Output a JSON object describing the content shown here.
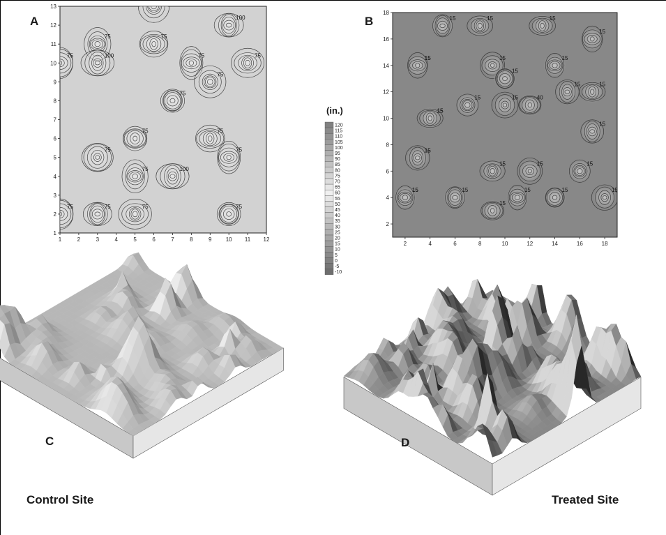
{
  "labels": {
    "panel_a": "A",
    "panel_b": "B",
    "panel_c": "C",
    "panel_d": "D",
    "control_site": "Control Site",
    "treated_site": "Treated Site",
    "legend_unit": "(in.)"
  },
  "colors": {
    "contour_line": "#2b2b2b",
    "control_fill": "#d2d2d2",
    "treated_fill": "#888888",
    "surface_light": "#e4e4e4",
    "surface_dark": "#3a3a3a"
  },
  "chart_data": [
    {
      "type": "heatmap",
      "panel": "A",
      "subtype": "contour",
      "x": {
        "ticks": [
          1,
          2,
          3,
          4,
          5,
          6,
          7,
          8,
          9,
          10,
          11,
          12
        ],
        "range": [
          1,
          12
        ]
      },
      "y": {
        "ticks": [
          1,
          2,
          3,
          4,
          5,
          6,
          7,
          8,
          9,
          10,
          11,
          12,
          13
        ],
        "range": [
          1,
          13
        ]
      },
      "contour_labels": [
        "75",
        "100",
        "75",
        "75",
        "100",
        "75",
        "75",
        "75",
        "75",
        "75",
        "75",
        "75",
        "100",
        "75",
        "75",
        "75",
        "75",
        "75",
        "75",
        "100"
      ],
      "peaks": [
        {
          "x": 3,
          "y": 11,
          "value": 100
        },
        {
          "x": 3,
          "y": 10,
          "value": 100
        },
        {
          "x": 6,
          "y": 11,
          "value": 110
        },
        {
          "x": 8,
          "y": 10,
          "value": 100
        },
        {
          "x": 10,
          "y": 12,
          "value": 100
        },
        {
          "x": 11,
          "y": 10,
          "value": 100
        },
        {
          "x": 1,
          "y": 10,
          "value": 90
        },
        {
          "x": 7,
          "y": 8,
          "value": 90
        },
        {
          "x": 9,
          "y": 9,
          "value": 95
        },
        {
          "x": 3,
          "y": 5,
          "value": 100
        },
        {
          "x": 5,
          "y": 6,
          "value": 100
        },
        {
          "x": 5,
          "y": 4,
          "value": 95
        },
        {
          "x": 7,
          "y": 4,
          "value": 95
        },
        {
          "x": 9,
          "y": 6,
          "value": 100
        },
        {
          "x": 10,
          "y": 5,
          "value": 100
        },
        {
          "x": 3,
          "y": 2,
          "value": 110
        },
        {
          "x": 5,
          "y": 2,
          "value": 110
        },
        {
          "x": 1,
          "y": 2,
          "value": 100
        },
        {
          "x": 10,
          "y": 2,
          "value": 100
        },
        {
          "x": 6,
          "y": 13,
          "value": 90
        }
      ]
    },
    {
      "type": "heatmap",
      "panel": "B",
      "subtype": "contour",
      "x": {
        "ticks": [
          2,
          4,
          6,
          8,
          10,
          12,
          14,
          16,
          18
        ],
        "range": [
          1,
          19
        ]
      },
      "y": {
        "ticks": [
          2,
          4,
          6,
          8,
          10,
          12,
          14,
          16,
          18
        ],
        "range": [
          1,
          18
        ]
      },
      "contour_labels": [
        "15",
        "15",
        "15",
        "15",
        "15",
        "15",
        "15",
        "15",
        "15",
        "15",
        "40",
        "15",
        "15",
        "15",
        "15",
        "15",
        "15",
        "15",
        "15",
        "15",
        "15",
        "15",
        "15",
        "15",
        "15",
        "15",
        "15",
        "15",
        "15"
      ],
      "peaks": [
        {
          "x": 2,
          "y": 4,
          "value": 110
        },
        {
          "x": 3,
          "y": 7,
          "value": 90
        },
        {
          "x": 4,
          "y": 10,
          "value": 90
        },
        {
          "x": 3,
          "y": 14,
          "value": 70
        },
        {
          "x": 5,
          "y": 17,
          "value": 90
        },
        {
          "x": 8,
          "y": 17,
          "value": 100
        },
        {
          "x": 9,
          "y": 14,
          "value": 90
        },
        {
          "x": 10,
          "y": 13,
          "value": 90
        },
        {
          "x": 7,
          "y": 11,
          "value": 70
        },
        {
          "x": 10,
          "y": 11,
          "value": 90
        },
        {
          "x": 12,
          "y": 11,
          "value": 80
        },
        {
          "x": 14,
          "y": 14,
          "value": 110
        },
        {
          "x": 15,
          "y": 12,
          "value": 100
        },
        {
          "x": 17,
          "y": 12,
          "value": 90
        },
        {
          "x": 17,
          "y": 16,
          "value": 100
        },
        {
          "x": 6,
          "y": 4,
          "value": 110
        },
        {
          "x": 9,
          "y": 6,
          "value": 90
        },
        {
          "x": 12,
          "y": 6,
          "value": 110
        },
        {
          "x": 14,
          "y": 4,
          "value": 110
        },
        {
          "x": 16,
          "y": 6,
          "value": 90
        },
        {
          "x": 18,
          "y": 4,
          "value": 90
        },
        {
          "x": 9,
          "y": 3,
          "value": 90
        },
        {
          "x": 11,
          "y": 4,
          "value": 80
        },
        {
          "x": 17,
          "y": 9,
          "value": 80
        },
        {
          "x": 13,
          "y": 17,
          "value": 90
        }
      ]
    },
    {
      "type": "legend",
      "title": "(in.)",
      "levels": [
        "120",
        "115",
        "110",
        "105",
        "100",
        "95",
        "90",
        "85",
        "80",
        "75",
        "70",
        "65",
        "60",
        "55",
        "50",
        "45",
        "40",
        "35",
        "30",
        "25",
        "20",
        "15",
        "10",
        "5",
        "0",
        "-5",
        "-10"
      ]
    },
    {
      "type": "surface-3d",
      "panel": "C",
      "label": "Control Site"
    },
    {
      "type": "surface-3d",
      "panel": "D",
      "label": "Treated Site"
    }
  ]
}
